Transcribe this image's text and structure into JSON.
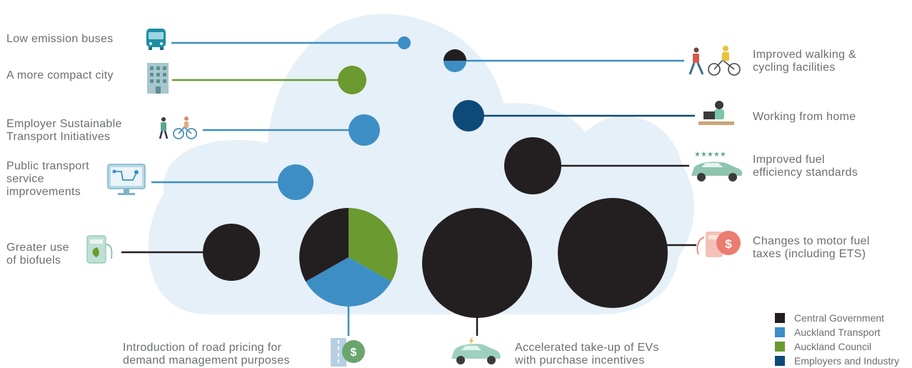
{
  "colors": {
    "central_government": "#231f20",
    "auckland_transport": "#3d8ec4",
    "auckland_council": "#6a9a30",
    "employers_industry": "#0d4a78",
    "cloud": "#e6f0f8",
    "text": "#6b6e72"
  },
  "legend": [
    {
      "label": "Central Government",
      "color": "#231f20"
    },
    {
      "label": "Auckland Transport",
      "color": "#3d8ec4"
    },
    {
      "label": "Auckland Council",
      "color": "#6a9a30"
    },
    {
      "label": "Employers and Industry",
      "color": "#0d4a78"
    }
  ],
  "items": {
    "low_emission_buses": {
      "label": "Low emission buses",
      "icon": "bus-icon",
      "owners": [
        "Auckland Transport"
      ]
    },
    "compact_city": {
      "label": "A more compact city",
      "icon": "building-icon",
      "owners": [
        "Auckland Council"
      ]
    },
    "employer_initiatives": {
      "label": "Employer Sustainable\nTransport Initiatives",
      "icon": "walk-cycle-icon",
      "owners": [
        "Auckland Transport"
      ]
    },
    "public_transport": {
      "label": "Public transport\nservice\nimprovements",
      "icon": "monitor-route-icon",
      "owners": [
        "Auckland Transport"
      ]
    },
    "biofuels": {
      "label": "Greater use\nof biofuels",
      "icon": "fuel-pump-leaf-icon",
      "owners": [
        "Central Government"
      ]
    },
    "road_pricing": {
      "label": "Introduction of road pricing for\ndemand management purposes",
      "icon": "road-dollar-icon",
      "owners": [
        "Central Government",
        "Auckland Transport",
        "Auckland Council"
      ]
    },
    "ev_incentives": {
      "label": "Accelerated take-up of EVs\nwith purchase incentives",
      "icon": "electric-car-icon",
      "owners": [
        "Central Government"
      ]
    },
    "walking_cycling": {
      "label": "Improved walking &\ncycling facilities",
      "icon": "pedestrian-cyclist-icon",
      "owners": [
        "Central Government",
        "Auckland Transport"
      ]
    },
    "working_from_home": {
      "label": "Working from home",
      "icon": "desk-laptop-icon",
      "owners": [
        "Employers and Industry"
      ]
    },
    "fuel_efficiency": {
      "label": "Improved fuel\nefficiency standards",
      "icon": "rated-car-icon",
      "owners": [
        "Central Government"
      ]
    },
    "motor_fuel_taxes": {
      "label": "Changes to motor fuel\ntaxes (including ETS)",
      "icon": "fuel-pump-dollar-icon",
      "owners": [
        "Central Government"
      ]
    }
  }
}
